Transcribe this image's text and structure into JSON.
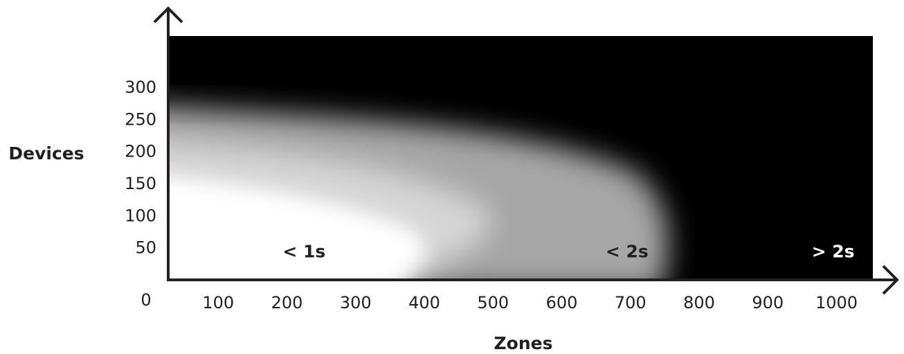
{
  "chart_data": {
    "type": "heatmap",
    "title": "",
    "xlabel": "Zones",
    "ylabel": "Devices",
    "x_ticks": [
      "100",
      "200",
      "300",
      "400",
      "500",
      "600",
      "700",
      "800",
      "900",
      "1000"
    ],
    "y_ticks": [
      "50",
      "100",
      "150",
      "200",
      "250",
      "300"
    ],
    "origin_label": "0",
    "xlim": [
      0,
      1050
    ],
    "ylim": [
      0,
      340
    ],
    "colormap": "white (fast) to black (slow)",
    "regions": [
      {
        "label": "< 1s",
        "x": 225,
        "y": 45,
        "color": "#231f20"
      },
      {
        "label": "< 2s",
        "x": 695,
        "y": 45,
        "color": "#231f20"
      },
      {
        "label": "> 2s",
        "x": 995,
        "y": 45,
        "color": "#ffffff"
      }
    ],
    "grid": false,
    "legend": "none"
  },
  "colors": {
    "axis": "#231f20",
    "fast": "#ffffff",
    "medium": "#a6a6a6",
    "slow": "#000000"
  }
}
